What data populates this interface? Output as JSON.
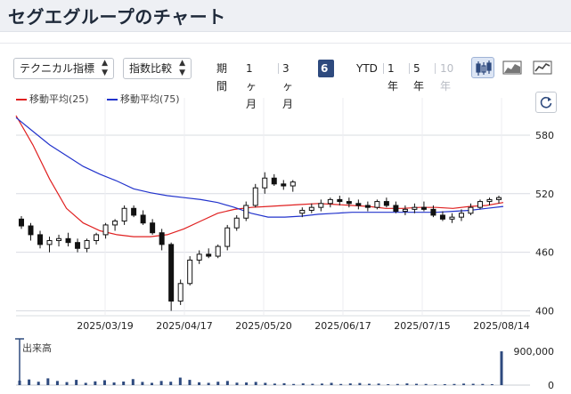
{
  "page": {
    "title": "セグエグループのチャート"
  },
  "controls": {
    "technical_select": "テクニカル指標",
    "compare_select": "指数比較",
    "periods": [
      {
        "label": "期間",
        "active": false,
        "disabled": false
      },
      {
        "label": "1ヶ月",
        "active": false,
        "disabled": false
      },
      {
        "label": "3ヶ月",
        "active": false,
        "disabled": false
      },
      {
        "label": "6ヶ月",
        "active": true,
        "disabled": false
      },
      {
        "label": "YTD",
        "active": false,
        "disabled": false
      },
      {
        "label": "1年",
        "active": false,
        "disabled": false
      },
      {
        "label": "5年",
        "active": false,
        "disabled": false
      },
      {
        "label": "10年",
        "active": false,
        "disabled": true
      }
    ],
    "chart_types": [
      {
        "icon": "candlestick-chart-icon",
        "active": true
      },
      {
        "icon": "area-chart-icon",
        "active": false
      },
      {
        "icon": "line-chart-icon",
        "active": false
      }
    ],
    "refresh_icon": "refresh-icon"
  },
  "legend": {
    "ma25": {
      "label": "移動平均(25)",
      "color": "#e02020"
    },
    "ma75": {
      "label": "移動平均(75)",
      "color": "#2233cc"
    }
  },
  "volume": {
    "title": "出来高"
  },
  "chart_data": {
    "type": "line",
    "x_ticks": [
      "2025/03/19",
      "2025/04/17",
      "2025/05/20",
      "2025/06/17",
      "2025/07/15",
      "2025/08/14"
    ],
    "y_ticks": [
      400,
      460,
      520,
      580
    ],
    "ylim": [
      395,
      600
    ],
    "volume_ticks": [
      0,
      900000
    ],
    "series": [
      {
        "name": "移動平均(25)",
        "color": "#e02020",
        "values": [
          600,
          570,
          535,
          505,
          490,
          482,
          478,
          476,
          476,
          478,
          484,
          492,
          500,
          504,
          506,
          507,
          508,
          509,
          510,
          509,
          508,
          507,
          505,
          505,
          506,
          506,
          505,
          507,
          508,
          511
        ]
      },
      {
        "name": "移動平均(75)",
        "color": "#2233cc",
        "values": [
          598,
          584,
          570,
          559,
          548,
          540,
          533,
          525,
          521,
          518,
          516,
          514,
          511,
          506,
          500,
          496,
          496,
          497,
          499,
          500,
          501,
          501,
          501,
          501,
          501,
          501,
          502,
          503,
          505,
          507
        ]
      }
    ],
    "candles": [
      [
        494,
        497,
        484,
        487
      ],
      [
        487,
        490,
        472,
        478
      ],
      [
        478,
        482,
        464,
        468
      ],
      [
        468,
        476,
        460,
        472
      ],
      [
        472,
        478,
        466,
        474
      ],
      [
        474,
        480,
        466,
        470
      ],
      [
        470,
        474,
        460,
        464
      ],
      [
        464,
        474,
        460,
        472
      ],
      [
        472,
        480,
        468,
        478
      ],
      [
        478,
        490,
        474,
        488
      ],
      [
        488,
        494,
        482,
        492
      ],
      [
        492,
        508,
        488,
        505
      ],
      [
        505,
        508,
        496,
        498
      ],
      [
        498,
        503,
        488,
        490
      ],
      [
        490,
        494,
        478,
        480
      ],
      [
        480,
        484,
        462,
        468
      ],
      [
        468,
        470,
        400,
        410
      ],
      [
        410,
        432,
        406,
        428
      ],
      [
        428,
        456,
        426,
        452
      ],
      [
        452,
        462,
        448,
        458
      ],
      [
        458,
        464,
        454,
        456
      ],
      [
        456,
        468,
        454,
        466
      ],
      [
        466,
        488,
        462,
        485
      ],
      [
        485,
        498,
        482,
        495
      ],
      [
        495,
        512,
        492,
        508
      ],
      [
        508,
        530,
        506,
        526
      ],
      [
        526,
        542,
        520,
        536
      ],
      [
        536,
        540,
        528,
        530
      ],
      [
        530,
        534,
        524,
        528
      ],
      [
        528,
        534,
        522,
        532
      ],
      [
        500,
        506,
        496,
        503
      ],
      [
        503,
        510,
        500,
        506
      ],
      [
        506,
        514,
        502,
        510
      ],
      [
        510,
        516,
        506,
        514
      ],
      [
        514,
        518,
        508,
        512
      ],
      [
        512,
        516,
        506,
        510
      ],
      [
        510,
        514,
        504,
        508
      ],
      [
        508,
        512,
        502,
        506
      ],
      [
        506,
        514,
        504,
        512
      ],
      [
        512,
        516,
        506,
        508
      ],
      [
        508,
        512,
        500,
        502
      ],
      [
        502,
        508,
        498,
        504
      ],
      [
        504,
        510,
        500,
        506
      ],
      [
        506,
        512,
        502,
        504
      ],
      [
        504,
        508,
        496,
        498
      ],
      [
        498,
        502,
        492,
        494
      ],
      [
        494,
        500,
        490,
        496
      ],
      [
        496,
        504,
        492,
        500
      ],
      [
        500,
        510,
        498,
        506
      ],
      [
        506,
        514,
        504,
        512
      ],
      [
        512,
        516,
        508,
        514
      ],
      [
        514,
        518,
        510,
        516
      ]
    ],
    "volume_values": [
      120000,
      150000,
      90000,
      180000,
      110000,
      80000,
      140000,
      60000,
      100000,
      130000,
      70000,
      95000,
      160000,
      85000,
      60000,
      110000,
      90000,
      200000,
      140000,
      75000,
      60000,
      90000,
      110000,
      65000,
      70000,
      85000,
      60000,
      40000,
      50000,
      30000,
      45000,
      35000,
      40000,
      60000,
      30000,
      45000,
      55000,
      35000,
      40000,
      25000,
      30000,
      45000,
      35000,
      30000,
      20000,
      25000,
      30000,
      40000,
      35000,
      30000,
      25000,
      900000
    ]
  }
}
